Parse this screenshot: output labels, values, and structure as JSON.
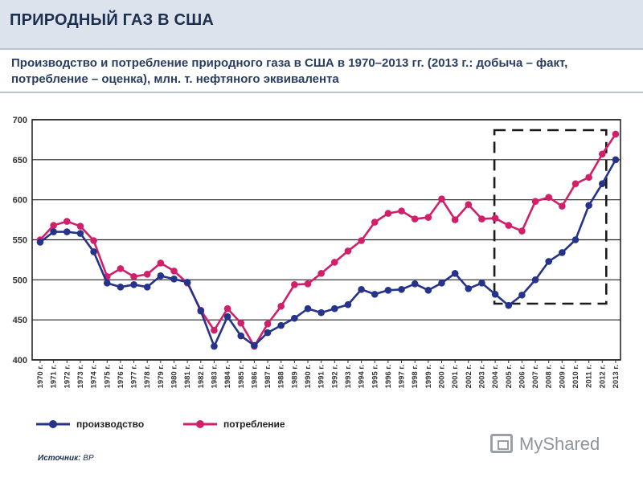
{
  "header": {
    "title": "ПРИРОДНЫЙ ГАЗ В США"
  },
  "subtitle": "Производство и потребление природного газа в США в 1970–2013 гг. (2013 г.: добыча – факт, потребление – оценка), млн. т. нефтяного эквивалента",
  "source": {
    "label": "Источник:",
    "value": "BP"
  },
  "watermark": {
    "text": "MyShared"
  },
  "colors": {
    "production": "#26338a",
    "consumption": "#d11f6a",
    "frame": "#1a1a1a",
    "highlight": "#1a1a1a"
  },
  "chart_data": {
    "type": "line",
    "title": "",
    "xlabel": "",
    "ylabel": "",
    "ylim": [
      400,
      700
    ],
    "yticks": [
      400,
      450,
      500,
      550,
      600,
      650,
      700
    ],
    "grid": true,
    "legend_position": "bottom",
    "categories": [
      "1970 г.",
      "1971 г.",
      "1972 г.",
      "1973 г.",
      "1974 г.",
      "1975 г.",
      "1976 г.",
      "1977 г.",
      "1978 г.",
      "1979 г.",
      "1980 г.",
      "1981 г.",
      "1982 г.",
      "1983 г.",
      "1984 г.",
      "1985 г.",
      "1986 г.",
      "1987 г.",
      "1988 г.",
      "1989 г.",
      "1990 г.",
      "1991 г.",
      "1992 г.",
      "1993 г.",
      "1994 г.",
      "1995 г.",
      "1996 г.",
      "1997 г.",
      "1998 г.",
      "1999 г.",
      "2000 г.",
      "2001 г.",
      "2002 г.",
      "2003 г.",
      "2004 г.",
      "2005 г.",
      "2006 г.",
      "2007 г.",
      "2008 г.",
      "2009 г.",
      "2010 г.",
      "2011 г.",
      "2012 г.",
      "2013 г."
    ],
    "series": [
      {
        "name": "производство",
        "color": "#26338a",
        "values": [
          547,
          560,
          560,
          558,
          535,
          496,
          491,
          494,
          491,
          505,
          501,
          497,
          461,
          417,
          454,
          430,
          418,
          434,
          443,
          452,
          464,
          459,
          464,
          469,
          488,
          482,
          487,
          488,
          495,
          487,
          496,
          508,
          489,
          496,
          482,
          468,
          481,
          500,
          523,
          534,
          550,
          593,
          620,
          650
        ]
      },
      {
        "name": "потребление",
        "color": "#d11f6a",
        "values": [
          550,
          568,
          573,
          567,
          549,
          504,
          514,
          504,
          507,
          521,
          511,
          496,
          462,
          437,
          464,
          446,
          417,
          445,
          467,
          494,
          495,
          508,
          522,
          536,
          549,
          572,
          583,
          586,
          576,
          578,
          601,
          575,
          594,
          576,
          577,
          568,
          561,
          598,
          603,
          592,
          620,
          628,
          657,
          682
        ]
      }
    ],
    "highlight_range": {
      "from": "2004 г.",
      "to": "2012 г."
    }
  }
}
